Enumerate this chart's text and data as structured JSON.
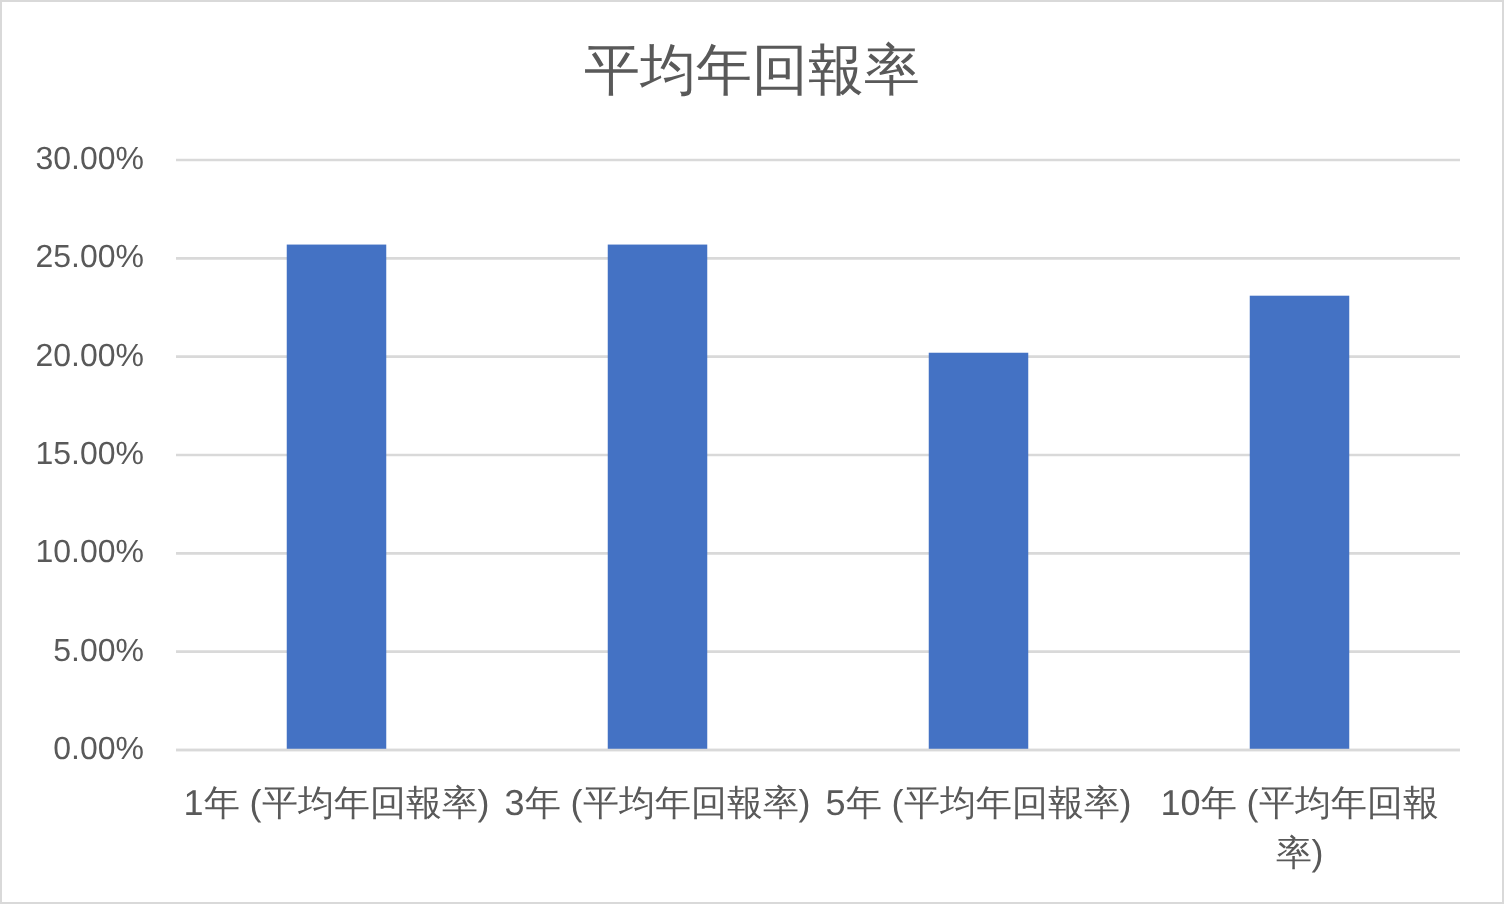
{
  "chart_data": {
    "type": "bar",
    "title": "平均年回報率",
    "categories": [
      "1年 (平均年回報率)",
      "3年 (平均年回報率)",
      "5年 (平均年回報率)",
      "10年 (平均年回報率)"
    ],
    "values": [
      25.7,
      25.7,
      20.2,
      23.1
    ],
    "color": "#4472c4",
    "ylim": [
      0,
      30
    ],
    "yticks": [
      {
        "value": 0,
        "label": "0.00%"
      },
      {
        "value": 5,
        "label": "5.00%"
      },
      {
        "value": 10,
        "label": "10.00%"
      },
      {
        "value": 15,
        "label": "15.00%"
      },
      {
        "value": 20,
        "label": "20.00%"
      },
      {
        "value": 25,
        "label": "25.00%"
      },
      {
        "value": 30,
        "label": "30.00%"
      }
    ],
    "grid": "y"
  }
}
